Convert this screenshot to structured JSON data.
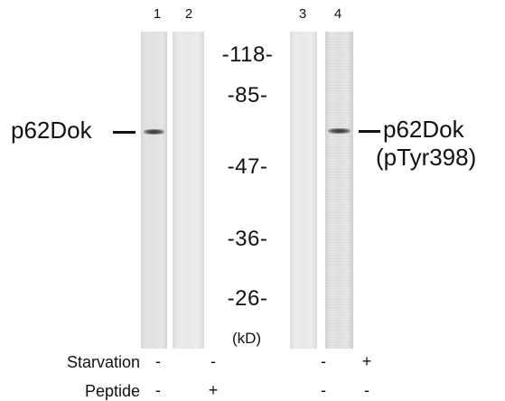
{
  "lanes": [
    {
      "number": "1"
    },
    {
      "number": "2"
    },
    {
      "number": "3"
    },
    {
      "number": "4"
    }
  ],
  "markers": [
    "-118-",
    "-85-",
    "-47-",
    "-36-",
    "-26-"
  ],
  "unit_label": "(kD)",
  "protein_left": "p62Dok",
  "protein_right_line1": "p62Dok",
  "protein_right_line2": "(pTyr398)",
  "conditions": [
    {
      "label": "Starvation",
      "values": [
        "-",
        "-",
        "-",
        "+"
      ]
    },
    {
      "label": "Peptide",
      "values": [
        "-",
        "+",
        "-",
        "-"
      ]
    }
  ]
}
